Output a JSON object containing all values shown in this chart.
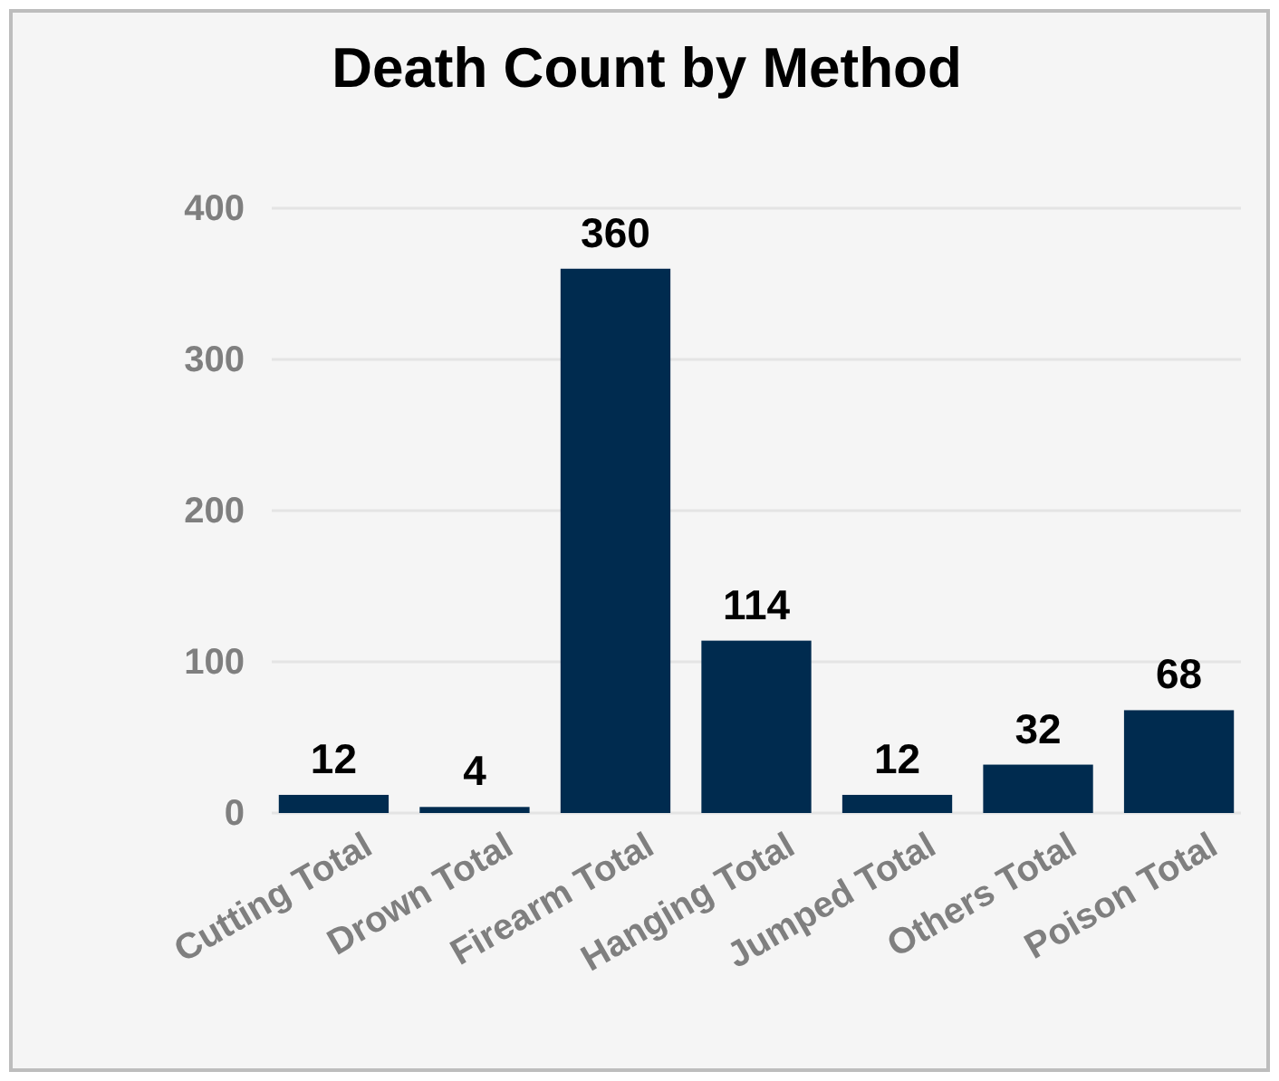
{
  "chart_data": {
    "type": "bar",
    "title": "Death Count by Method",
    "categories": [
      "Cutting Total",
      "Drown Total",
      "Firearm Total",
      "Hanging Total",
      "Jumped Total",
      "Others Total",
      "Poison Total"
    ],
    "values": [
      12,
      4,
      360,
      114,
      12,
      32,
      68
    ],
    "color": "#002b4f",
    "ylim": [
      0,
      400
    ],
    "yticks": [
      0,
      100,
      200,
      300,
      400
    ],
    "grid": "y",
    "data_labels": true
  }
}
